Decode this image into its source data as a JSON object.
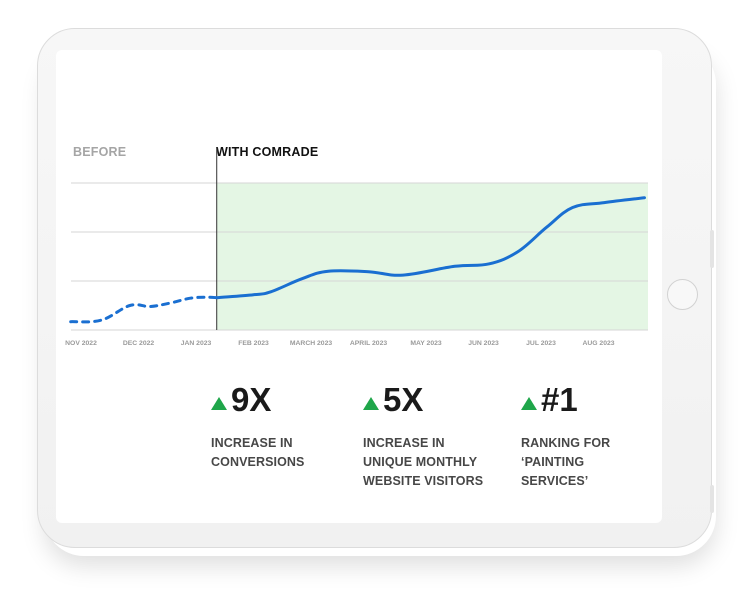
{
  "chart_data": {
    "type": "line",
    "categories": [
      "NOV 2022",
      "DEC 2022",
      "JAN 2023",
      "FEB 2023",
      "MARCH 2023",
      "APRIL 2023",
      "MAY 2023",
      "JUN 2023",
      "JUL 2023",
      "AUG 2023"
    ],
    "period_labels": {
      "before": "BEFORE",
      "after": "WITH COMRADE"
    },
    "divider_at": 2.36,
    "ylim": [
      0,
      3
    ],
    "grid": true,
    "series": [
      {
        "style": "dashed",
        "color": "#1a6fd1",
        "x": [
          -0.18,
          0.35,
          0.85,
          1.2,
          1.55,
          1.9,
          2.2,
          2.36
        ],
        "y": [
          0.17,
          0.2,
          0.5,
          0.48,
          0.55,
          0.65,
          0.67,
          0.66
        ]
      },
      {
        "style": "solid",
        "color": "#1a6fd1",
        "x": [
          2.36,
          3.0,
          3.3,
          3.85,
          4.3,
          5.0,
          5.6,
          6.5,
          7.1,
          7.6,
          8.1,
          8.55,
          9.1,
          9.8
        ],
        "y": [
          0.66,
          0.72,
          0.78,
          1.05,
          1.2,
          1.19,
          1.12,
          1.3,
          1.35,
          1.6,
          2.1,
          2.5,
          2.6,
          2.7
        ]
      }
    ],
    "highlight_color": "#e4f6e4"
  },
  "stats": [
    {
      "value": "9X",
      "desc": "INCREASE IN\nCONVERSIONS"
    },
    {
      "value": "5X",
      "desc": "INCREASE IN\nUNIQUE MONTHLY\nWEBSITE VISITORS"
    },
    {
      "value": "#1",
      "desc": "RANKING FOR\n‘PAINTING\nSERVICES’"
    }
  ],
  "colors": {
    "up_arrow": "#1fa64a",
    "line": "#1a6fd1",
    "before_label": "#a5a5a5",
    "after_label": "#111111"
  },
  "icons": {
    "up_arrow": "triangle-up-icon"
  }
}
